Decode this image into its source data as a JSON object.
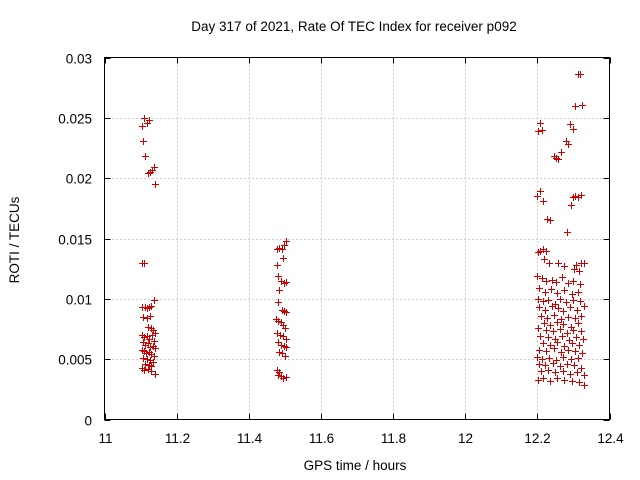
{
  "chart_data": {
    "type": "scatter",
    "title": "Day 317 of 2021, Rate Of TEC Index for receiver p092",
    "xlabel": "GPS time / hours",
    "ylabel": "ROTI / TECUs",
    "xlim": [
      11,
      12.4
    ],
    "ylim": [
      0,
      0.03
    ],
    "xticks": [
      11,
      11.2,
      11.4,
      11.6,
      11.8,
      12,
      12.2,
      12.4
    ],
    "xtick_labels": [
      "11",
      "11.2",
      "11.4",
      "11.6",
      "11.8",
      "12",
      "12.2",
      "12.4"
    ],
    "yticks": [
      0,
      0.005,
      0.01,
      0.015,
      0.02,
      0.025,
      0.03
    ],
    "ytick_labels": [
      "0",
      "0.005",
      "0.01",
      "0.015",
      "0.02",
      "0.025",
      "0.03"
    ],
    "grid": true,
    "marker": "+",
    "color": "#cc0000",
    "series": [
      {
        "name": "ROTI",
        "points": [
          [
            11.105,
            0.0243
          ],
          [
            11.11,
            0.025
          ],
          [
            11.118,
            0.0246
          ],
          [
            11.123,
            0.0248
          ],
          [
            11.106,
            0.0231
          ],
          [
            11.112,
            0.0218
          ],
          [
            11.12,
            0.0204
          ],
          [
            11.126,
            0.0205
          ],
          [
            11.133,
            0.0207
          ],
          [
            11.138,
            0.0209
          ],
          [
            11.14,
            0.0195
          ],
          [
            11.105,
            0.013
          ],
          [
            11.11,
            0.013
          ],
          [
            11.105,
            0.0093
          ],
          [
            11.112,
            0.0093
          ],
          [
            11.118,
            0.0092
          ],
          [
            11.124,
            0.0093
          ],
          [
            11.13,
            0.0094
          ],
          [
            11.138,
            0.0099
          ],
          [
            11.108,
            0.0085
          ],
          [
            11.118,
            0.0084
          ],
          [
            11.126,
            0.0086
          ],
          [
            11.12,
            0.0077
          ],
          [
            11.128,
            0.0076
          ],
          [
            11.134,
            0.0074
          ],
          [
            11.14,
            0.0072
          ],
          [
            11.104,
            0.007
          ],
          [
            11.11,
            0.0068
          ],
          [
            11.118,
            0.0069
          ],
          [
            11.124,
            0.0067
          ],
          [
            11.132,
            0.007
          ],
          [
            11.138,
            0.0065
          ],
          [
            11.106,
            0.0064
          ],
          [
            11.112,
            0.0062
          ],
          [
            11.12,
            0.0063
          ],
          [
            11.126,
            0.006
          ],
          [
            11.134,
            0.0061
          ],
          [
            11.14,
            0.0059
          ],
          [
            11.104,
            0.0058
          ],
          [
            11.11,
            0.0057
          ],
          [
            11.116,
            0.0055
          ],
          [
            11.122,
            0.0056
          ],
          [
            11.13,
            0.0054
          ],
          [
            11.138,
            0.0053
          ],
          [
            11.108,
            0.0051
          ],
          [
            11.118,
            0.005
          ],
          [
            11.126,
            0.0049
          ],
          [
            11.134,
            0.0048
          ],
          [
            11.112,
            0.0046
          ],
          [
            11.122,
            0.0045
          ],
          [
            11.13,
            0.0044
          ],
          [
            11.104,
            0.0043
          ],
          [
            11.11,
            0.0041
          ],
          [
            11.12,
            0.0042
          ],
          [
            11.128,
            0.004
          ],
          [
            11.14,
            0.0038
          ],
          [
            11.478,
            0.0141
          ],
          [
            11.485,
            0.0142
          ],
          [
            11.492,
            0.0141
          ],
          [
            11.498,
            0.0145
          ],
          [
            11.503,
            0.0148
          ],
          [
            11.495,
            0.0134
          ],
          [
            11.478,
            0.0128
          ],
          [
            11.482,
            0.0119
          ],
          [
            11.49,
            0.0115
          ],
          [
            11.497,
            0.0113
          ],
          [
            11.502,
            0.0114
          ],
          [
            11.485,
            0.0107
          ],
          [
            11.48,
            0.0097
          ],
          [
            11.492,
            0.0091
          ],
          [
            11.498,
            0.009
          ],
          [
            11.503,
            0.0089
          ],
          [
            11.476,
            0.0083
          ],
          [
            11.482,
            0.0082
          ],
          [
            11.488,
            0.0081
          ],
          [
            11.496,
            0.0078
          ],
          [
            11.5,
            0.0076
          ],
          [
            11.478,
            0.0072
          ],
          [
            11.486,
            0.007
          ],
          [
            11.494,
            0.0069
          ],
          [
            11.502,
            0.0067
          ],
          [
            11.48,
            0.0064
          ],
          [
            11.488,
            0.0062
          ],
          [
            11.497,
            0.0061
          ],
          [
            11.503,
            0.006
          ],
          [
            11.484,
            0.0056
          ],
          [
            11.492,
            0.0055
          ],
          [
            11.5,
            0.0053
          ],
          [
            11.478,
            0.0041
          ],
          [
            11.484,
            0.0039
          ],
          [
            11.48,
            0.0037
          ],
          [
            11.49,
            0.0036
          ],
          [
            11.496,
            0.0034
          ],
          [
            11.503,
            0.0035
          ],
          [
            12.202,
            0.0239
          ],
          [
            12.206,
            0.0246
          ],
          [
            12.212,
            0.024
          ],
          [
            12.28,
            0.0231
          ],
          [
            12.285,
            0.0228
          ],
          [
            12.29,
            0.0245
          ],
          [
            12.298,
            0.0241
          ],
          [
            12.305,
            0.026
          ],
          [
            12.312,
            0.0286
          ],
          [
            12.317,
            0.0286
          ],
          [
            12.325,
            0.0261
          ],
          [
            12.245,
            0.0218
          ],
          [
            12.252,
            0.0217
          ],
          [
            12.258,
            0.0216
          ],
          [
            12.265,
            0.0222
          ],
          [
            12.2,
            0.0185
          ],
          [
            12.206,
            0.0189
          ],
          [
            12.215,
            0.0181
          ],
          [
            12.292,
            0.0178
          ],
          [
            12.298,
            0.0184
          ],
          [
            12.305,
            0.0185
          ],
          [
            12.313,
            0.0184
          ],
          [
            12.32,
            0.0186
          ],
          [
            12.228,
            0.0166
          ],
          [
            12.235,
            0.0165
          ],
          [
            12.282,
            0.0155
          ],
          [
            12.202,
            0.0139
          ],
          [
            12.208,
            0.014
          ],
          [
            12.215,
            0.0141
          ],
          [
            12.225,
            0.014
          ],
          [
            12.218,
            0.0133
          ],
          [
            12.232,
            0.013
          ],
          [
            12.258,
            0.013
          ],
          [
            12.275,
            0.0127
          ],
          [
            12.308,
            0.0128
          ],
          [
            12.32,
            0.013
          ],
          [
            12.328,
            0.013
          ],
          [
            12.302,
            0.0125
          ],
          [
            12.315,
            0.0123
          ],
          [
            12.2,
            0.0119
          ],
          [
            12.212,
            0.0117
          ],
          [
            12.225,
            0.0115
          ],
          [
            12.24,
            0.0116
          ],
          [
            12.252,
            0.0114
          ],
          [
            12.268,
            0.0118
          ],
          [
            12.285,
            0.0113
          ],
          [
            12.3,
            0.0115
          ],
          [
            12.318,
            0.0112
          ],
          [
            12.205,
            0.0109
          ],
          [
            12.22,
            0.0106
          ],
          [
            12.238,
            0.0108
          ],
          [
            12.255,
            0.0105
          ],
          [
            12.275,
            0.0107
          ],
          [
            12.295,
            0.0104
          ],
          [
            12.312,
            0.0106
          ],
          [
            12.202,
            0.01
          ],
          [
            12.215,
            0.0098
          ],
          [
            12.23,
            0.0099
          ],
          [
            12.248,
            0.0096
          ],
          [
            12.262,
            0.01
          ],
          [
            12.28,
            0.0097
          ],
          [
            12.298,
            0.0099
          ],
          [
            12.318,
            0.0098
          ],
          [
            12.205,
            0.0093
          ],
          [
            12.222,
            0.0091
          ],
          [
            12.24,
            0.0094
          ],
          [
            12.258,
            0.0092
          ],
          [
            12.272,
            0.009
          ],
          [
            12.29,
            0.0093
          ],
          [
            12.31,
            0.0091
          ],
          [
            12.328,
            0.0094
          ],
          [
            12.21,
            0.0086
          ],
          [
            12.228,
            0.0084
          ],
          [
            12.245,
            0.0087
          ],
          [
            12.265,
            0.0083
          ],
          [
            12.285,
            0.0085
          ],
          [
            12.305,
            0.0084
          ],
          [
            12.322,
            0.0086
          ],
          [
            12.218,
            0.008
          ],
          [
            12.235,
            0.0078
          ],
          [
            12.255,
            0.0081
          ],
          [
            12.27,
            0.0079
          ],
          [
            12.292,
            0.0077
          ],
          [
            12.312,
            0.008
          ],
          [
            12.202,
            0.0076
          ],
          [
            12.225,
            0.0074
          ],
          [
            12.242,
            0.0073
          ],
          [
            12.262,
            0.0075
          ],
          [
            12.282,
            0.0072
          ],
          [
            12.3,
            0.0074
          ],
          [
            12.32,
            0.0073
          ],
          [
            12.208,
            0.0069
          ],
          [
            12.23,
            0.0068
          ],
          [
            12.25,
            0.0067
          ],
          [
            12.268,
            0.0069
          ],
          [
            12.288,
            0.0066
          ],
          [
            12.308,
            0.0068
          ],
          [
            12.326,
            0.0067
          ],
          [
            12.215,
            0.0063
          ],
          [
            12.235,
            0.0062
          ],
          [
            12.255,
            0.0064
          ],
          [
            12.275,
            0.0061
          ],
          [
            12.295,
            0.0063
          ],
          [
            12.316,
            0.0062
          ],
          [
            12.205,
            0.0058
          ],
          [
            12.225,
            0.0057
          ],
          [
            12.245,
            0.0059
          ],
          [
            12.265,
            0.0056
          ],
          [
            12.285,
            0.0058
          ],
          [
            12.305,
            0.0057
          ],
          [
            12.325,
            0.0055
          ],
          [
            12.2,
            0.0052
          ],
          [
            12.212,
            0.005
          ],
          [
            12.232,
            0.0051
          ],
          [
            12.252,
            0.0049
          ],
          [
            12.272,
            0.0052
          ],
          [
            12.292,
            0.005
          ],
          [
            12.312,
            0.0051
          ],
          [
            12.205,
            0.0046
          ],
          [
            12.222,
            0.0045
          ],
          [
            12.242,
            0.0047
          ],
          [
            12.262,
            0.0044
          ],
          [
            12.282,
            0.0046
          ],
          [
            12.302,
            0.0045
          ],
          [
            12.322,
            0.0043
          ],
          [
            12.21,
            0.004
          ],
          [
            12.23,
            0.0041
          ],
          [
            12.25,
            0.0039
          ],
          [
            12.27,
            0.004
          ],
          [
            12.29,
            0.0038
          ],
          [
            12.31,
            0.0039
          ],
          [
            12.328,
            0.0037
          ],
          [
            12.202,
            0.0033
          ],
          [
            12.215,
            0.0034
          ],
          [
            12.235,
            0.0032
          ],
          [
            12.255,
            0.0034
          ],
          [
            12.275,
            0.0033
          ],
          [
            12.295,
            0.0032
          ],
          [
            12.315,
            0.0031
          ],
          [
            12.33,
            0.0029
          ]
        ]
      }
    ]
  }
}
